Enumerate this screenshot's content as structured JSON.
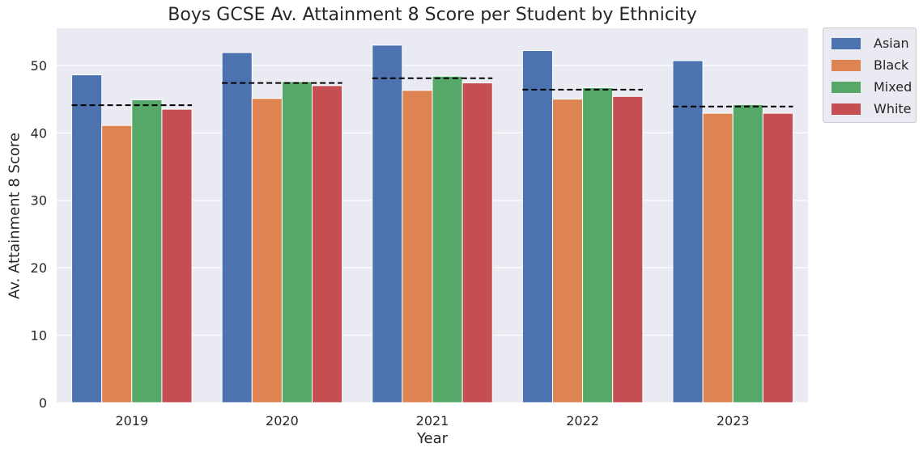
{
  "chart_data": {
    "type": "bar",
    "title": "Boys GCSE Av. Attainment 8 Score per Student by Ethnicity",
    "xlabel": "Year",
    "ylabel": "Av. Attainment 8 Score",
    "categories": [
      "2019",
      "2020",
      "2021",
      "2022",
      "2023"
    ],
    "ylim": [
      0,
      55.5
    ],
    "yticks": [
      0,
      10,
      20,
      30,
      40,
      50
    ],
    "grid": true,
    "legend_position": "outside-top-right",
    "series": [
      {
        "name": "Asian",
        "color": "#4c72b0",
        "values": [
          48.6,
          51.9,
          53.0,
          52.2,
          50.7
        ]
      },
      {
        "name": "Black",
        "color": "#dd8452",
        "values": [
          41.1,
          45.1,
          46.3,
          45.0,
          42.9
        ]
      },
      {
        "name": "Mixed",
        "color": "#55a868",
        "values": [
          44.9,
          47.6,
          48.4,
          46.7,
          44.2
        ]
      },
      {
        "name": "White",
        "color": "#c44e52",
        "values": [
          43.5,
          47.0,
          47.4,
          45.4,
          42.9
        ]
      }
    ],
    "reference_lines": {
      "style": "dashed",
      "color": "#000000",
      "values": [
        44.1,
        47.4,
        48.1,
        46.4,
        43.9
      ]
    },
    "background_color": "#eaeaf2"
  }
}
